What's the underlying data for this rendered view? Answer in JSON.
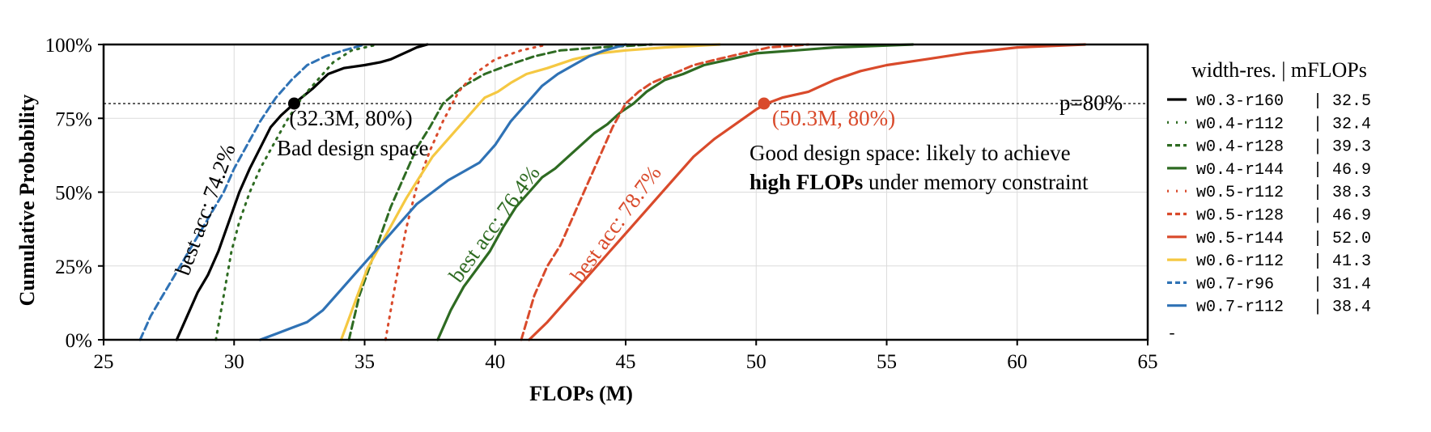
{
  "chart_data": {
    "type": "line",
    "xlabel": "FLOPs (M)",
    "ylabel": "Cumulative Probability",
    "xlim": [
      25,
      65
    ],
    "ylim": [
      0,
      100
    ],
    "x_ticks": [
      25,
      30,
      35,
      40,
      45,
      50,
      55,
      60,
      65
    ],
    "x_tick_labels": [
      "25",
      "30",
      "35",
      "40",
      "45",
      "50",
      "55",
      "60",
      "65"
    ],
    "y_ticks": [
      0,
      25,
      50,
      75,
      100
    ],
    "y_tick_labels": [
      "0%",
      "25%",
      "50%",
      "75%",
      "100%"
    ],
    "grid": true,
    "reference_line": {
      "y": 80,
      "label": "p=80%"
    },
    "legend": {
      "placement": "right",
      "header": "width-res. | mFLOPs",
      "extra_marker": "-"
    },
    "series": [
      {
        "name": "w0.3-r160",
        "mflops": "32.5",
        "color": "#000000",
        "style": "solid",
        "x": [
          27.8,
          28.2,
          28.6,
          29.0,
          29.4,
          29.8,
          30.2,
          30.6,
          31.0,
          31.4,
          31.8,
          32.3,
          33.0,
          33.6,
          34.2,
          35.0,
          35.6,
          36.0,
          36.5,
          37.0,
          37.4
        ],
        "y": [
          0,
          8,
          16,
          22,
          30,
          40,
          50,
          58,
          65,
          72,
          76,
          80,
          85,
          90,
          92,
          93,
          94,
          95,
          97,
          99,
          100
        ]
      },
      {
        "name": "w0.4-r112",
        "mflops": "32.4",
        "color": "#2e6b22",
        "style": "dotted",
        "x": [
          29.3,
          29.6,
          29.9,
          30.2,
          30.6,
          31.0,
          31.5,
          32.0,
          32.6,
          33.2,
          33.8,
          34.5,
          35.5
        ],
        "y": [
          0,
          15,
          30,
          40,
          50,
          58,
          66,
          74,
          82,
          88,
          94,
          98,
          100
        ]
      },
      {
        "name": "w0.4-r128",
        "mflops": "39.3",
        "color": "#2e6b22",
        "style": "dashed",
        "x": [
          34.4,
          34.8,
          35.2,
          35.6,
          36.0,
          36.5,
          37.0,
          37.5,
          38.0,
          38.8,
          39.6,
          40.5,
          41.5,
          42.5,
          44.0,
          46.0
        ],
        "y": [
          0,
          15,
          25,
          35,
          45,
          55,
          65,
          72,
          80,
          86,
          90,
          93,
          96,
          98,
          99,
          100
        ]
      },
      {
        "name": "w0.4-r144",
        "mflops": "46.9",
        "color": "#2e6b22",
        "style": "solid",
        "x": [
          37.8,
          38.3,
          38.8,
          39.3,
          39.8,
          40.3,
          40.8,
          41.3,
          41.8,
          42.3,
          42.8,
          43.3,
          43.8,
          44.3,
          44.8,
          45.3,
          45.8,
          46.5,
          47.2,
          48.0,
          49.0,
          50.0,
          51.5,
          53.0,
          56.0
        ],
        "y": [
          0,
          10,
          18,
          24,
          30,
          38,
          45,
          50,
          55,
          58,
          62,
          66,
          70,
          73,
          77,
          80,
          84,
          88,
          90,
          93,
          95,
          97,
          98,
          99,
          100
        ]
      },
      {
        "name": "w0.5-r112",
        "mflops": "38.3",
        "color": "#d94a2b",
        "style": "dotted",
        "x": [
          35.8,
          36.2,
          36.6,
          37.0,
          37.5,
          38.0,
          38.6,
          39.2,
          40.0,
          41.0,
          42.0
        ],
        "y": [
          0,
          20,
          38,
          52,
          64,
          74,
          84,
          90,
          95,
          98,
          100
        ]
      },
      {
        "name": "w0.5-r128",
        "mflops": "46.9",
        "color": "#d94a2b",
        "style": "dashed",
        "x": [
          41.0,
          41.5,
          42.0,
          42.5,
          43.0,
          43.5,
          44.0,
          44.5,
          45.0,
          45.5,
          46.0,
          46.8,
          47.6,
          48.5,
          49.5,
          50.5,
          52.0
        ],
        "y": [
          0,
          15,
          25,
          32,
          42,
          52,
          62,
          72,
          80,
          84,
          87,
          90,
          93,
          95,
          97,
          99,
          100
        ]
      },
      {
        "name": "w0.5-r144",
        "mflops": "52.0",
        "color": "#d94a2b",
        "style": "solid",
        "x": [
          41.3,
          42.0,
          42.8,
          43.6,
          44.4,
          45.2,
          46.0,
          46.8,
          47.6,
          48.4,
          49.2,
          50.0,
          50.4,
          51.0,
          52.0,
          53.0,
          54.0,
          55.0,
          56.5,
          58.0,
          60.0,
          62.6
        ],
        "y": [
          0,
          6,
          14,
          22,
          30,
          38,
          46,
          54,
          62,
          68,
          73,
          78,
          80,
          82,
          84,
          88,
          91,
          93,
          95,
          97,
          99,
          100
        ]
      },
      {
        "name": "w0.6-r112",
        "mflops": "41.3",
        "color": "#f5c842",
        "style": "solid",
        "x": [
          34.1,
          34.6,
          35.1,
          35.6,
          36.1,
          36.6,
          37.1,
          37.6,
          38.1,
          38.6,
          39.1,
          39.6,
          40.1,
          40.6,
          41.2,
          42.0,
          43.0,
          44.0,
          45.0,
          46.5,
          48.6
        ],
        "y": [
          0,
          12,
          24,
          32,
          40,
          48,
          55,
          62,
          67,
          72,
          77,
          82,
          84,
          87,
          90,
          92,
          95,
          97,
          98,
          99,
          100
        ]
      },
      {
        "name": "w0.7-r96",
        "mflops": "31.4",
        "color": "#2f72b5",
        "style": "dashed",
        "x": [
          26.4,
          26.8,
          27.2,
          27.6,
          28.0,
          28.4,
          28.8,
          29.2,
          29.6,
          30.0,
          30.5,
          31.0,
          31.6,
          32.2,
          32.8,
          33.5,
          34.2,
          35.0
        ],
        "y": [
          0,
          8,
          14,
          20,
          26,
          32,
          38,
          44,
          50,
          58,
          66,
          74,
          82,
          88,
          93,
          96,
          98,
          100
        ]
      },
      {
        "name": "w0.7-r112",
        "mflops": "38.4",
        "color": "#2f72b5",
        "style": "solid",
        "x": [
          31.0,
          31.6,
          32.2,
          32.8,
          33.4,
          34.0,
          34.6,
          35.2,
          35.8,
          36.4,
          37.0,
          37.6,
          38.2,
          38.8,
          39.4,
          40.0,
          40.6,
          41.2,
          41.8,
          42.4,
          43.0,
          43.6,
          44.2,
          45.0
        ],
        "y": [
          0,
          2,
          4,
          6,
          10,
          16,
          22,
          28,
          34,
          40,
          46,
          50,
          54,
          57,
          60,
          66,
          74,
          80,
          86,
          90,
          93,
          96,
          98,
          100
        ]
      }
    ],
    "points": [
      {
        "x": 32.3,
        "y": 80,
        "color": "#000000",
        "label": "(32.3M, 80%)"
      },
      {
        "x": 50.3,
        "y": 80,
        "color": "#d94a2b",
        "label": "(50.3M, 80%)"
      }
    ],
    "annotations": {
      "bad_space": "Bad design space",
      "good_space_line1": "Good design space: likely to achieve",
      "good_space_bold": "high FLOPs",
      "good_space_rest": " under memory constraint",
      "best_acc_black": "best acc: 74.2%",
      "best_acc_green": "best acc: 76.4%",
      "best_acc_red": "best acc: 78.7%"
    }
  }
}
